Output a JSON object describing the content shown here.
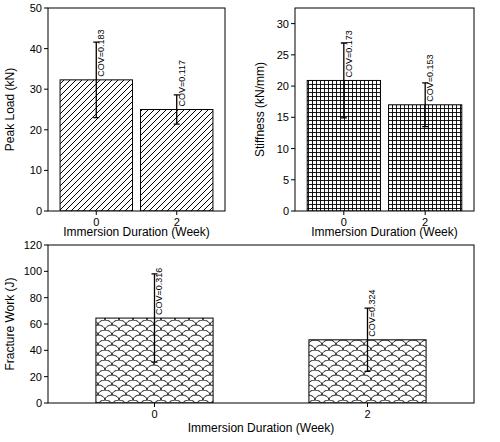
{
  "chart_data": [
    {
      "type": "bar",
      "x_label": "Immersion Duration (Week)",
      "y_label": "Peak Load (kN)",
      "categories": [
        "0",
        "2"
      ],
      "values": [
        32.3,
        25.0
      ],
      "errors": [
        9.3,
        3.6
      ],
      "annotations": [
        "COV=0.183",
        "COV=0.117"
      ],
      "color": "#000000",
      "ylim": [
        0,
        50
      ],
      "yticks": [
        0,
        10,
        20,
        30,
        40,
        50
      ]
    },
    {
      "type": "bar",
      "x_label": "Immersion Duration (Week)",
      "y_label": "Stiffness (kN/mm)",
      "categories": [
        "0",
        "2"
      ],
      "values": [
        20.9,
        17.0
      ],
      "errors": [
        6.0,
        3.5
      ],
      "annotations": [
        "COV=0.173",
        "COV=0.153"
      ],
      "color": "#000000",
      "ylim": [
        0,
        32.5
      ],
      "yticks": [
        0,
        5,
        10,
        15,
        20,
        25,
        30
      ]
    },
    {
      "type": "bar",
      "x_label": "Immersion Duration (Week)",
      "y_label": "Fracture Work (J)",
      "categories": [
        "0",
        "2"
      ],
      "values": [
        64.5,
        48.0
      ],
      "errors": [
        33.5,
        24.0
      ],
      "annotations": [
        "COV=0.316",
        "COV=0.324"
      ],
      "color": "#000000",
      "ylim": [
        0,
        120
      ],
      "yticks": [
        0,
        20,
        40,
        60,
        80,
        100,
        120
      ]
    }
  ]
}
